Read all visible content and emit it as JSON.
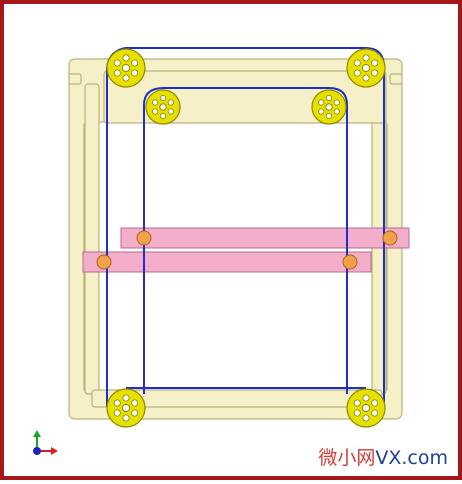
{
  "watermark": {
    "prefix": "微小网",
    "suffix": "VX.com",
    "prefix_color": "#d53a3a",
    "suffix_color": "#1f3f98"
  },
  "colors": {
    "frame_fill": "#f5f0c8",
    "frame_stroke": "#b9b27a",
    "belt": "#1f2ec8",
    "pulley_fill": "#e5e000",
    "pulley_stroke": "#8f8a00",
    "bar_fill": "#f2aecb",
    "bar_stroke": "#b96c8b",
    "pin_fill": "#f2a14a",
    "pin_stroke": "#a4671d",
    "axis_x": "#d92020",
    "axis_y": "#15a82f",
    "axis_origin": "#2020c8"
  },
  "icons": {
    "pulley": "pulley-icon",
    "pin": "pin-icon",
    "axis_triad": "axis-triad-icon"
  }
}
